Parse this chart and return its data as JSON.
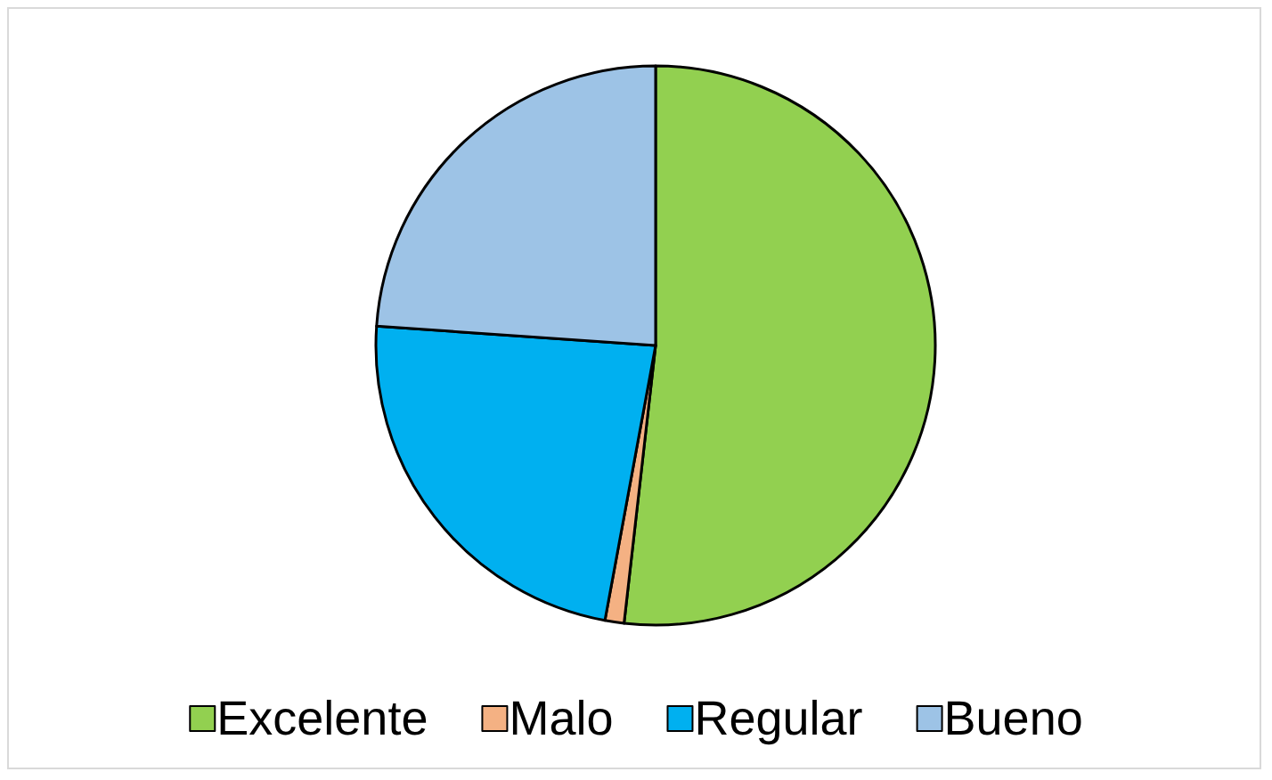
{
  "chart_data": {
    "type": "pie",
    "categories": [
      "Excelente",
      "Malo",
      "Regular",
      "Bueno"
    ],
    "values": [
      51.8,
      1.1,
      23.2,
      23.9
    ],
    "colors": [
      "#92d050",
      "#f4b183",
      "#00b0f0",
      "#9dc3e6"
    ],
    "legend": "bottom"
  }
}
